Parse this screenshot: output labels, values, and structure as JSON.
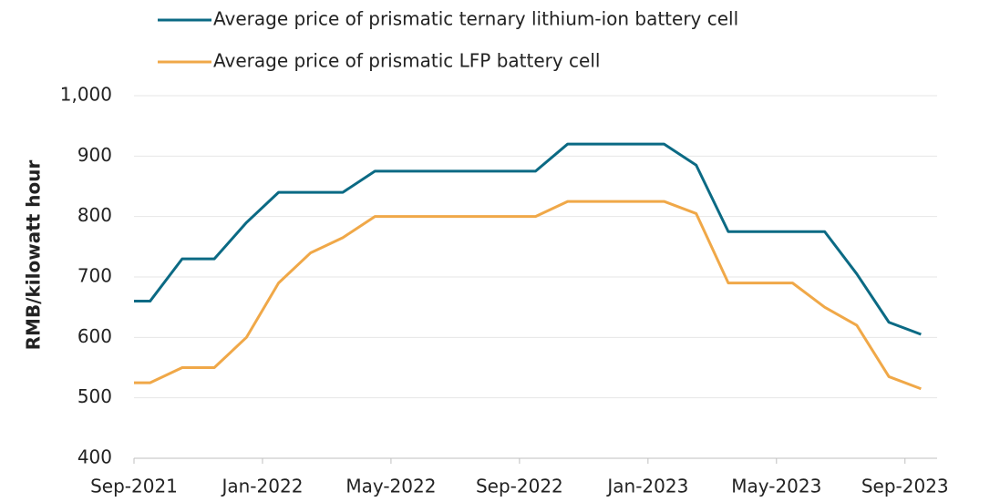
{
  "chart_data": {
    "type": "line",
    "y_label": "RMB/kilowatt hour",
    "x": [
      0,
      0.5,
      1.5,
      2.5,
      3.5,
      4.5,
      5.5,
      6.5,
      7.5,
      8.5,
      9.5,
      10.5,
      11.5,
      12.5,
      13.5,
      14.5,
      15.5,
      16.5,
      17.5,
      18.5,
      19.5,
      20.5,
      21.5,
      22.5,
      23.5,
      24.5
    ],
    "series": [
      {
        "name": "Average price of prismatic ternary lithium-ion battery cell",
        "color": "#0b6a84",
        "values": [
          660,
          660,
          730,
          730,
          790,
          840,
          840,
          840,
          875,
          875,
          875,
          875,
          875,
          875,
          920,
          920,
          920,
          920,
          885,
          775,
          775,
          775,
          775,
          705,
          625,
          605
        ]
      },
      {
        "name": "Average price of prismatic LFP battery cell",
        "color": "#f0a848",
        "values": [
          525,
          525,
          550,
          550,
          600,
          690,
          740,
          765,
          800,
          800,
          800,
          800,
          800,
          800,
          825,
          825,
          825,
          825,
          805,
          690,
          690,
          690,
          650,
          620,
          535,
          515
        ]
      }
    ],
    "xlim": [
      0,
      25
    ],
    "xticks": [
      {
        "value": 0,
        "label": "Sep-2021"
      },
      {
        "value": 4,
        "label": "Jan-2022"
      },
      {
        "value": 8,
        "label": "May-2022"
      },
      {
        "value": 12,
        "label": "Sep-2022"
      },
      {
        "value": 16,
        "label": "Jan-2023"
      },
      {
        "value": 20,
        "label": "May-2023"
      },
      {
        "value": 24,
        "label": "Sep-2023"
      }
    ],
    "ylim": [
      400,
      1000
    ],
    "yticks": [
      400,
      500,
      600,
      700,
      800,
      900,
      {
        "value": 1000,
        "label": "1,000"
      }
    ],
    "grid": true,
    "legend": "top"
  }
}
